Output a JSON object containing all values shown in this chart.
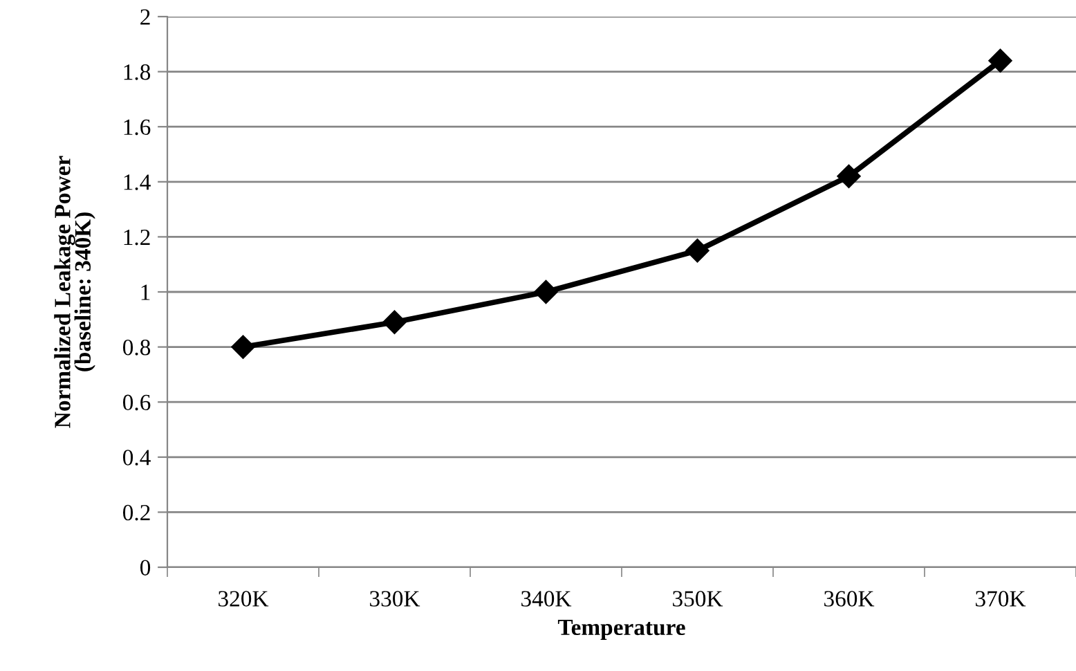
{
  "chart_data": {
    "type": "line",
    "xlabel": "Temperature",
    "ylabel": "Normalized Leakage Power\n(baseline: 340K)",
    "categories": [
      "320K",
      "330K",
      "340K",
      "350K",
      "360K",
      "370K"
    ],
    "series": [
      {
        "color": "#000000",
        "values": [
          0.8,
          0.89,
          1.0,
          1.15,
          1.42,
          1.84
        ]
      }
    ],
    "ylim": [
      0,
      2
    ],
    "yticks": [
      0,
      {
        "value": 0.2,
        "label": "0.2"
      },
      {
        "value": 0.4,
        "label": "0.4"
      },
      {
        "value": 0.6,
        "label": "0.6"
      },
      {
        "value": 0.8,
        "label": "0.8"
      },
      1,
      {
        "value": 1.2,
        "label": "1.2"
      },
      {
        "value": 1.4,
        "label": "1.4"
      },
      {
        "value": 1.6,
        "label": "1.6"
      },
      {
        "value": 1.8,
        "label": "1.8"
      },
      2
    ],
    "grid": "y",
    "marker": "diamond",
    "line_style": "solid"
  }
}
